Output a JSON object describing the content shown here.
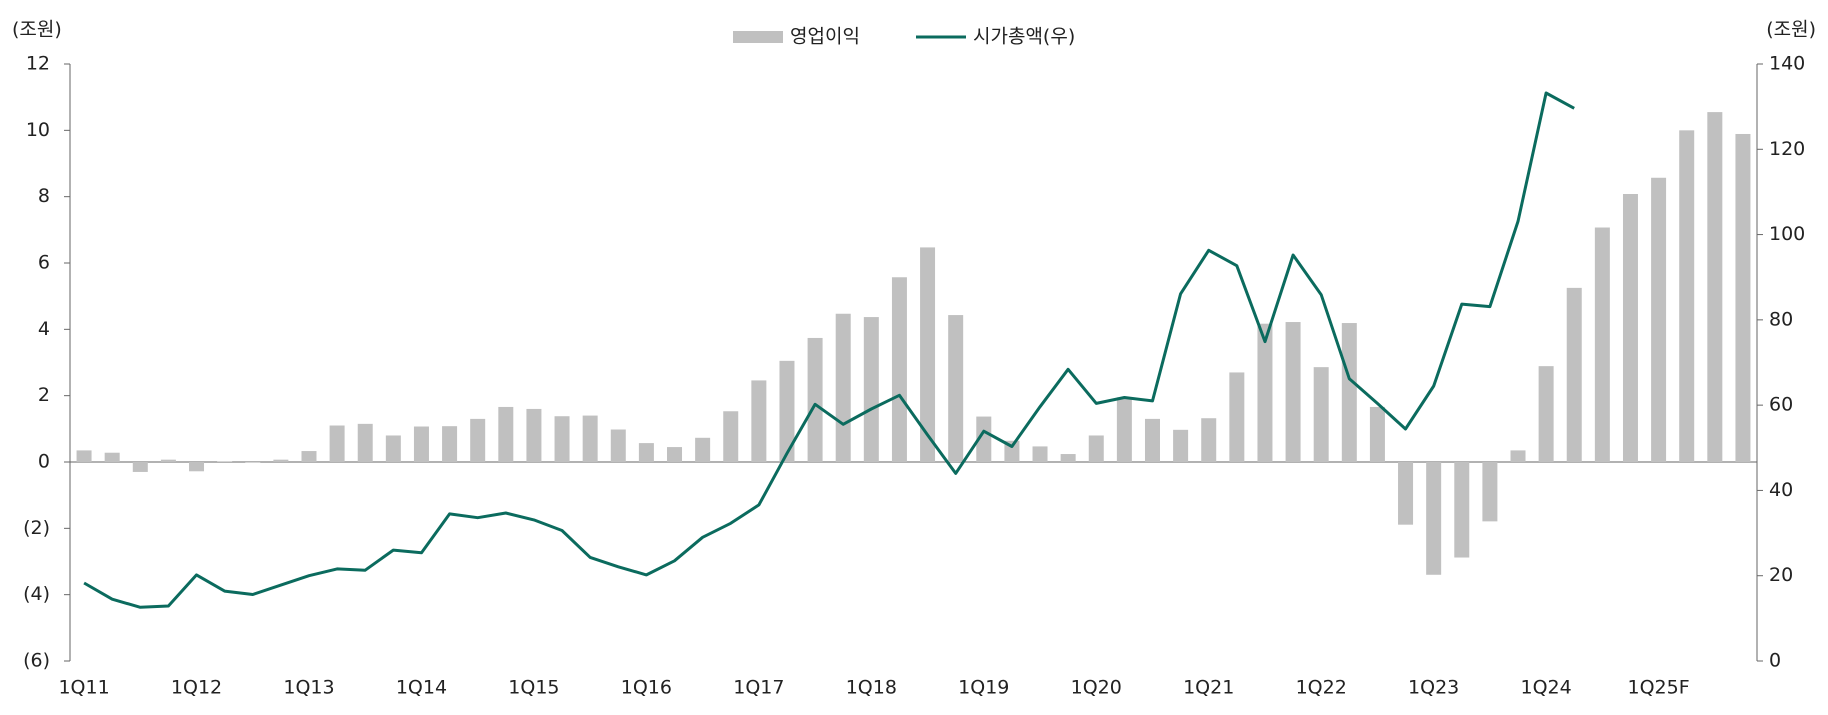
{
  "chart_data": {
    "type": "bar_line",
    "y_label": "(조원)",
    "y2_label": "(조원)",
    "categories": [
      "1Q11",
      null,
      null,
      null,
      "1Q12",
      null,
      null,
      null,
      "1Q13",
      null,
      null,
      null,
      "1Q14",
      null,
      null,
      null,
      "1Q15",
      null,
      null,
      null,
      "1Q16",
      null,
      null,
      null,
      "1Q17",
      null,
      null,
      null,
      "1Q18",
      null,
      null,
      null,
      "1Q19",
      null,
      null,
      null,
      "1Q20",
      null,
      null,
      null,
      "1Q21",
      null,
      null,
      null,
      "1Q22",
      null,
      null,
      null,
      "1Q23",
      null,
      null,
      null,
      "1Q24",
      null,
      null,
      null,
      "1Q25F",
      null,
      null,
      null
    ],
    "series": [
      {
        "name": "영업이익",
        "type": "bar",
        "color": "#c0c0c0",
        "values": [
          0.35,
          0.28,
          -0.3,
          0.07,
          -0.28,
          0.02,
          -0.02,
          0.07,
          0.33,
          1.1,
          1.15,
          0.8,
          1.07,
          1.08,
          1.3,
          1.66,
          1.6,
          1.38,
          1.4,
          0.98,
          0.57,
          0.45,
          0.73,
          1.53,
          2.46,
          3.05,
          3.74,
          4.47,
          4.37,
          5.57,
          6.47,
          4.43,
          1.37,
          0.64,
          0.47,
          0.24,
          0.8,
          1.95,
          1.3,
          0.97,
          1.32,
          2.7,
          4.17,
          4.22,
          2.86,
          4.19,
          1.66,
          -1.89,
          -3.4,
          -2.88,
          -1.79,
          0.35,
          2.89,
          5.25,
          7.07,
          8.08,
          8.57,
          10.0,
          10.55,
          9.89
        ]
      },
      {
        "name": "시가총액(우)",
        "type": "line",
        "axis": "y2",
        "color": "#0b6b5e",
        "values": [
          18.3,
          14.5,
          12.6,
          12.9,
          20.2,
          16.4,
          15.6,
          17.8,
          20.0,
          21.6,
          21.3,
          26.0,
          25.4,
          34.5,
          33.6,
          34.7,
          33.1,
          30.6,
          24.3,
          22.1,
          20.2,
          23.5,
          29.0,
          32.3,
          36.6,
          48.7,
          60.2,
          55.5,
          59.1,
          62.3,
          53.0,
          44.0,
          53.9,
          50.3,
          59.6,
          68.4,
          60.4,
          61.8,
          61.0,
          86.1,
          96.3,
          92.7,
          74.9,
          95.2,
          85.9,
          66.2,
          60.4,
          54.4,
          64.5,
          83.7,
          83.1,
          103.1,
          133.2,
          129.6,
          null,
          null,
          null,
          null,
          null,
          null
        ]
      }
    ],
    "ylim": [
      -6,
      12
    ],
    "yticks": [
      {
        "value": -6,
        "label": "(6)"
      },
      {
        "value": -4,
        "label": "(4)"
      },
      {
        "value": -2,
        "label": "(2)"
      },
      0,
      2,
      4,
      6,
      8,
      10,
      12
    ],
    "y2lim": [
      0,
      140
    ],
    "y2ticks": [
      0,
      20,
      40,
      60,
      80,
      100,
      120,
      140
    ],
    "legend": "top"
  }
}
